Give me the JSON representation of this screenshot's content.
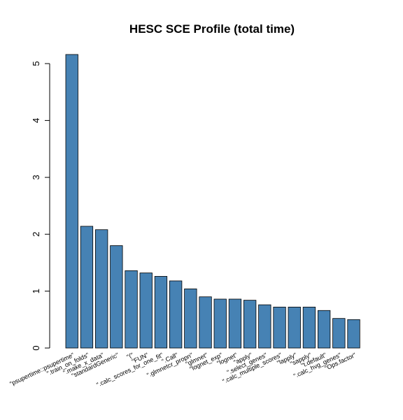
{
  "chart_data": {
    "type": "bar",
    "title": "HESC SCE Profile (total time)",
    "xlabel": "",
    "ylabel": "",
    "ylim": [
      0,
      5.3
    ],
    "yticks": [
      0,
      1,
      2,
      3,
      4,
      5
    ],
    "bar_color": "#4682b4",
    "categories": [
      "\"psupertime::psupertime\"",
      "\".train_on_folds\"",
      "\".make_x_data\"",
      "\"standardGeneric\"",
      "\"(\"",
      "\"FUN\"",
      "\".calc_scores_for_one_fit\"",
      "\".Call\"",
      "\".glmnetcr_propn\"",
      "\"glmnet\"",
      "\"lognet_exp\"",
      "\"lognet\"",
      "\"apply\"",
      "\".select_genes\"",
      "\".calc_multiple_scores\"",
      "\"lapply\"",
      "\"sapply\"",
      "\"t.default\"",
      "\".calc_hvg_genes\"",
      "\"Ops.factor\""
    ],
    "values": [
      5.16,
      2.14,
      2.08,
      1.8,
      1.36,
      1.32,
      1.26,
      1.18,
      1.04,
      0.9,
      0.86,
      0.86,
      0.84,
      0.76,
      0.72,
      0.72,
      0.72,
      0.66,
      0.52,
      0.5
    ]
  }
}
